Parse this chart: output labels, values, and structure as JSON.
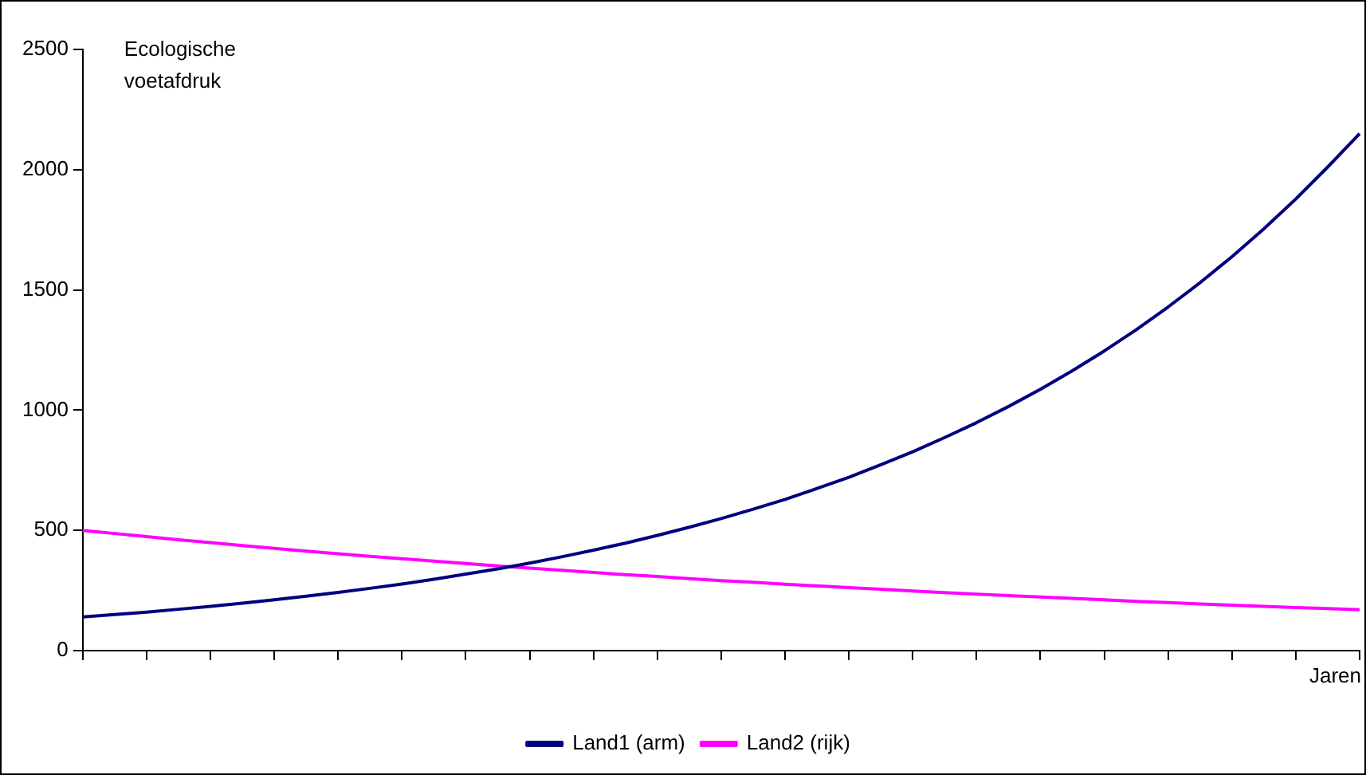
{
  "chart_data": {
    "type": "line",
    "ylabel": "Ecologische voetafdruk",
    "xlabel": "Jaren",
    "categories": [
      null,
      null,
      null,
      null,
      null,
      null,
      null,
      null,
      null,
      null,
      null,
      null,
      null,
      null,
      null,
      null,
      null,
      null,
      null,
      null,
      null,
      null,
      null,
      null,
      null,
      null,
      null,
      null,
      null,
      null,
      null,
      null,
      null,
      null,
      null,
      null,
      null,
      null,
      null,
      null,
      null
    ],
    "series": [
      {
        "name": "Land1 (arm)",
        "color": "#000080",
        "values": [
          140,
          150,
          160,
          172,
          184,
          197,
          211,
          226,
          242,
          259,
          277,
          297,
          318,
          340,
          364,
          390,
          418,
          447,
          479,
          513,
          549,
          588,
          629,
          674,
          721,
          773,
          827,
          886,
          948,
          1015,
          1087,
          1164,
          1246,
          1334,
          1429,
          1530,
          1638,
          1754,
          1878,
          2011,
          2150
        ]
      },
      {
        "name": "Land2 (rijk)",
        "color": "#ff00ff",
        "values": [
          500,
          487,
          474,
          461,
          449,
          437,
          425,
          414,
          403,
          392,
          382,
          372,
          362,
          352,
          343,
          334,
          325,
          316,
          308,
          299,
          291,
          284,
          276,
          269,
          262,
          255,
          248,
          241,
          235,
          229,
          223,
          217,
          211,
          205,
          200,
          194,
          189,
          184,
          179,
          175,
          170
        ]
      }
    ],
    "ylim": [
      0,
      2500
    ],
    "yticks": [
      0,
      500,
      1000,
      1500,
      2000,
      2500
    ],
    "grid": false,
    "legend": "bottom",
    "marker": "none",
    "line_style": "solid"
  }
}
